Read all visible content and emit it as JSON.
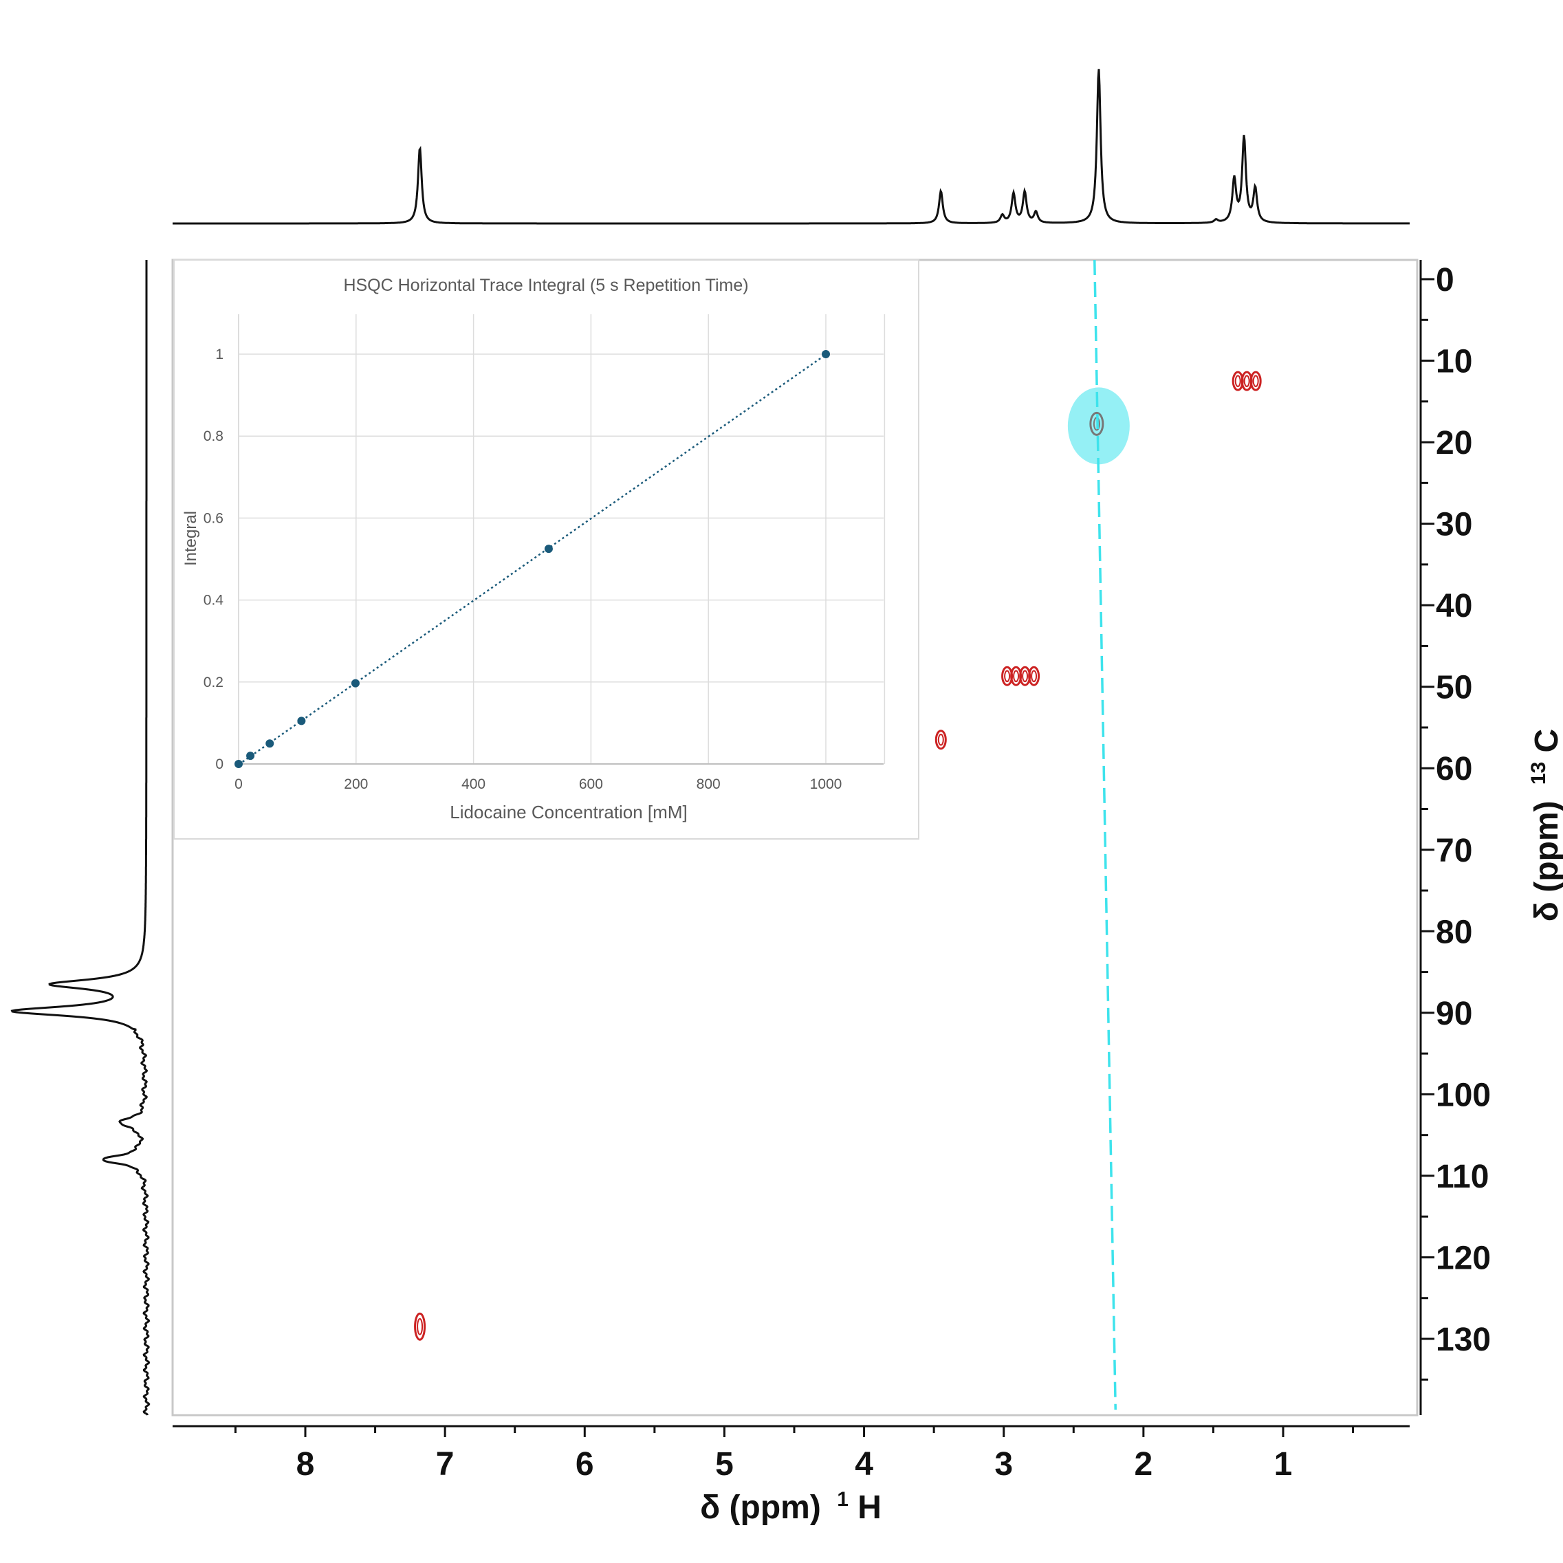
{
  "colors": {
    "trace": "#111111",
    "contour": "#cc2222",
    "cyan": "#3ee3ec",
    "marker": "#1a5a7a",
    "grid": "#dddddd",
    "frame": "#c8c8c8",
    "inset_text": "#595959"
  },
  "chart_data": [
    {
      "type": "heatmap",
      "title": "",
      "xlabel": "δ (ppm)",
      "xlabel_nucleus": "H",
      "xlabel_mass": "1",
      "ylabel": "δ (ppm)",
      "ylabel_nucleus": "C",
      "ylabel_mass": "13",
      "x_direction": "reversed",
      "xlim": [
        9.0,
        0.2
      ],
      "ylim": [
        -2,
        138
      ],
      "x_ticks": [
        "8",
        "7",
        "6",
        "5",
        "4",
        "3",
        "2",
        "1"
      ],
      "y_ticks": [
        "0",
        "10",
        "20",
        "30",
        "40",
        "50",
        "60",
        "70",
        "80",
        "90",
        "100",
        "110",
        "120",
        "130"
      ],
      "cross_peaks": [
        {
          "h": 7.18,
          "c": 128.5,
          "lobes": 1
        },
        {
          "h": 3.45,
          "c": 56.5,
          "lobes": 1
        },
        {
          "h": 2.88,
          "c": 48.7,
          "lobes": 4
        },
        {
          "h": 2.32,
          "c": 18.0,
          "lobes": 1,
          "highlighted": true
        },
        {
          "h": 1.26,
          "c": 12.5,
          "lobes": 3
        }
      ],
      "cursor_line": {
        "h_top": 2.35,
        "h_bottom": 2.2,
        "style": "dashed"
      },
      "projection_1h_peaks": [
        {
          "ppm": 7.18,
          "height": 0.49
        },
        {
          "ppm": 3.45,
          "height": 0.21
        },
        {
          "ppm": 3.01,
          "height": 0.05
        },
        {
          "ppm": 2.93,
          "height": 0.19
        },
        {
          "ppm": 2.85,
          "height": 0.2
        },
        {
          "ppm": 2.77,
          "height": 0.07
        },
        {
          "ppm": 2.32,
          "height": 1.0
        },
        {
          "ppm": 1.48,
          "height": 0.02
        },
        {
          "ppm": 1.35,
          "height": 0.28
        },
        {
          "ppm": 1.28,
          "height": 0.55
        },
        {
          "ppm": 1.2,
          "height": 0.22
        }
      ],
      "projection_13c_peaks": [
        {
          "ppm": 86.5,
          "height": 0.7
        },
        {
          "ppm": 89.8,
          "height": 1.0
        },
        {
          "ppm": 103.5,
          "height": 0.2
        },
        {
          "ppm": 108.0,
          "height": 0.32
        }
      ]
    },
    {
      "type": "scatter",
      "title": "HSQC Horizontal Trace Integral (5 s Repetition Time)",
      "xlabel": "Lidocaine Concentration [mM]",
      "ylabel": "Integral",
      "xlim": [
        0,
        1100
      ],
      "ylim": [
        0,
        1.1
      ],
      "x_ticks": [
        "0",
        "200",
        "400",
        "600",
        "800",
        "1000"
      ],
      "y_ticks": [
        "0",
        "0.2",
        "0.4",
        "0.6",
        "0.8",
        "1"
      ],
      "grid": true,
      "trendline": "linear, dotted",
      "x": [
        0,
        20,
        53,
        107,
        199,
        528,
        1000
      ],
      "y": [
        0.0,
        0.02,
        0.05,
        0.105,
        0.197,
        0.525,
        1.0
      ]
    }
  ]
}
